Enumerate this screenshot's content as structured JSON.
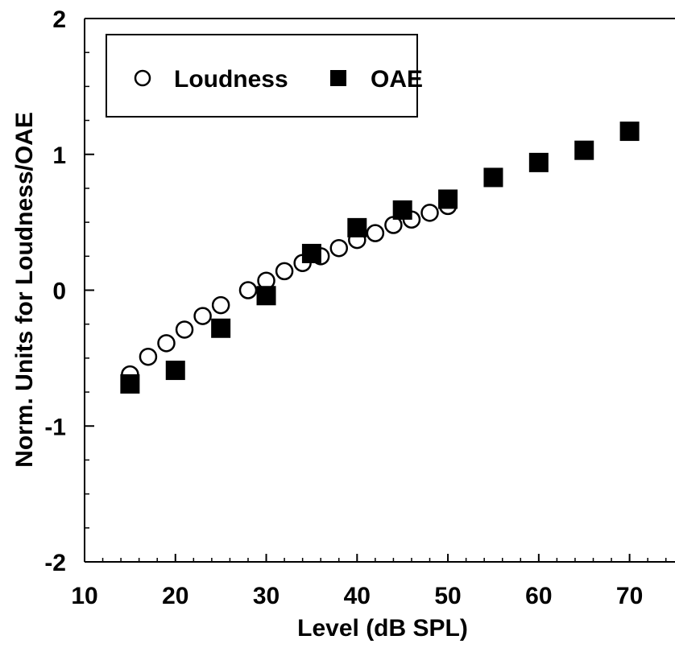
{
  "chart_data": {
    "type": "scatter",
    "title": "",
    "xlabel": "Level (dB SPL)",
    "ylabel": "Norm. Units for Loudness/OAE",
    "xlim": [
      10,
      75
    ],
    "ylim": [
      -2,
      2
    ],
    "x_ticks": [
      10,
      20,
      30,
      40,
      50,
      60,
      70
    ],
    "y_ticks": [
      -2,
      -1,
      0,
      1,
      2
    ],
    "x_tick_labels": [
      "10",
      "20",
      "30",
      "40",
      "50",
      "60",
      "70"
    ],
    "y_tick_labels": [
      "-2",
      "-1",
      "0",
      "1",
      "2"
    ],
    "grid": false,
    "legend_position": "top-left",
    "series": [
      {
        "name": "Loudness",
        "marker": "open-circle",
        "color": "#000000",
        "points": [
          {
            "x": 15,
            "y": -0.62
          },
          {
            "x": 17,
            "y": -0.49
          },
          {
            "x": 19,
            "y": -0.39
          },
          {
            "x": 21,
            "y": -0.29
          },
          {
            "x": 23,
            "y": -0.19
          },
          {
            "x": 25,
            "y": -0.11
          },
          {
            "x": 28,
            "y": 0.0
          },
          {
            "x": 30,
            "y": 0.07
          },
          {
            "x": 32,
            "y": 0.14
          },
          {
            "x": 34,
            "y": 0.2
          },
          {
            "x": 36,
            "y": 0.25
          },
          {
            "x": 38,
            "y": 0.31
          },
          {
            "x": 40,
            "y": 0.37
          },
          {
            "x": 42,
            "y": 0.42
          },
          {
            "x": 44,
            "y": 0.48
          },
          {
            "x": 46,
            "y": 0.52
          },
          {
            "x": 48,
            "y": 0.57
          },
          {
            "x": 50,
            "y": 0.62
          }
        ]
      },
      {
        "name": "OAE",
        "marker": "filled-square",
        "color": "#000000",
        "points": [
          {
            "x": 15,
            "y": -0.69
          },
          {
            "x": 20,
            "y": -0.59
          },
          {
            "x": 25,
            "y": -0.28
          },
          {
            "x": 30,
            "y": -0.04
          },
          {
            "x": 35,
            "y": 0.27
          },
          {
            "x": 40,
            "y": 0.46
          },
          {
            "x": 45,
            "y": 0.59
          },
          {
            "x": 50,
            "y": 0.67
          },
          {
            "x": 55,
            "y": 0.83
          },
          {
            "x": 60,
            "y": 0.94
          },
          {
            "x": 65,
            "y": 1.03
          },
          {
            "x": 70,
            "y": 1.17
          }
        ]
      }
    ]
  }
}
